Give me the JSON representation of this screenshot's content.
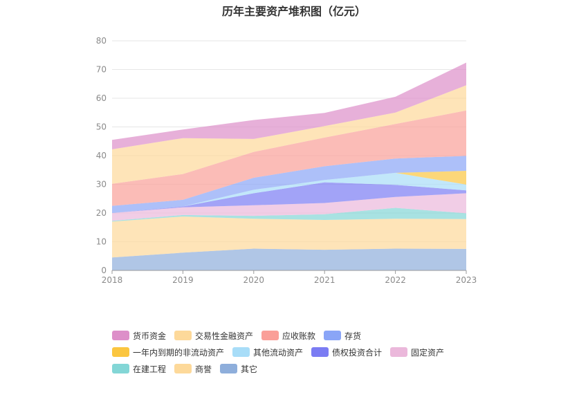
{
  "chart_data": {
    "type": "area",
    "stacked": true,
    "title": "历年主要资产堆积图（亿元）",
    "xlabel": "",
    "ylabel": "",
    "x": [
      "2018",
      "2019",
      "2020",
      "2021",
      "2022",
      "2023"
    ],
    "ylim": [
      0,
      80
    ],
    "yticks": [
      0,
      10,
      20,
      30,
      40,
      50,
      60,
      70,
      80
    ],
    "grid": true,
    "legend_position": "bottom",
    "series": [
      {
        "name": "其它",
        "color": "#8eaedb",
        "values": [
          4.5,
          6.2,
          7.6,
          7.2,
          7.6,
          7.5
        ]
      },
      {
        "name": "商誉",
        "color": "#fdd99a",
        "values": [
          12.5,
          12.6,
          10.4,
          10.4,
          10.4,
          10.4
        ]
      },
      {
        "name": "在建工程",
        "color": "#83d6d6",
        "values": [
          0.3,
          0.5,
          1.0,
          2.0,
          3.8,
          2.0
        ]
      },
      {
        "name": "固定资产",
        "color": "#ebb8db",
        "values": [
          2.7,
          2.7,
          3.7,
          3.9,
          3.8,
          7.0
        ]
      },
      {
        "name": "债权投资合计",
        "color": "#7b7cf3",
        "values": [
          0,
          0.3,
          4.2,
          7.2,
          4.2,
          1.0
        ]
      },
      {
        "name": "其他流动资产",
        "color": "#a8ddf8",
        "values": [
          0,
          0,
          1.2,
          0.8,
          4.2,
          2.0
        ]
      },
      {
        "name": "一年内到期的非流动资产",
        "color": "#fbc640",
        "values": [
          0,
          0,
          0,
          0,
          0,
          4.8
        ]
      },
      {
        "name": "存货",
        "color": "#8aa5f7",
        "values": [
          2.5,
          2.3,
          4.2,
          4.8,
          5.0,
          5.2
        ]
      },
      {
        "name": "应收账款",
        "color": "#fa9f98",
        "values": [
          7.7,
          9.0,
          9.0,
          10.0,
          12.0,
          15.8
        ]
      },
      {
        "name": "交易性金融资产",
        "color": "#fdd99a",
        "values": [
          12.0,
          12.5,
          4.5,
          4.0,
          4.0,
          8.8
        ]
      },
      {
        "name": "货币资金",
        "color": "#dd8fc9",
        "values": [
          3.3,
          3.0,
          6.6,
          4.6,
          5.5,
          7.9
        ]
      }
    ]
  },
  "legend_order": [
    "货币资金",
    "交易性金融资产",
    "应收账款",
    "存货",
    "一年内到期的非流动资产",
    "其他流动资产",
    "债权投资合计",
    "固定资产",
    "在建工程",
    "商誉",
    "其它"
  ]
}
